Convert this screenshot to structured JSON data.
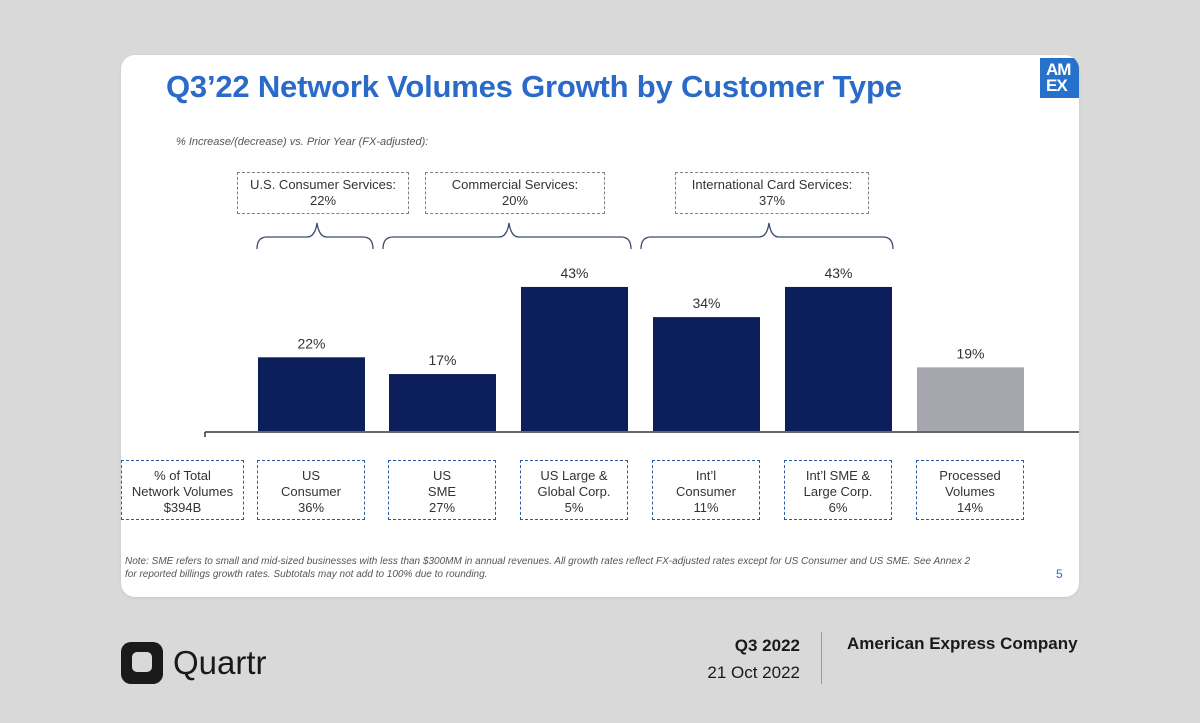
{
  "slide": {
    "title": "Q3’22 Network Volumes Growth by Customer Type",
    "subtitle": "% Increase/(decrease) vs. Prior Year (FX-adjusted):",
    "logo_line1": "AM",
    "logo_line2": "EX",
    "note_line1": "Note: SME refers to small and mid-sized businesses with less than $300MM in annual revenues. All growth rates reflect FX-adjusted rates except for US Consumer and US SME. See Annex 2",
    "note_line2": "for reported billings growth rates. Subtotals may not add to 100% due to rounding.",
    "page_number": "5",
    "groups": [
      {
        "name": "U.S. Consumer Services:",
        "value": "22%"
      },
      {
        "name": "Commercial Services:",
        "value": "20%"
      },
      {
        "name": "International Card Services:",
        "value": "37%"
      }
    ],
    "share_header": {
      "line1": "% of Total",
      "line2": "Network Volumes",
      "line3": "$394B"
    },
    "share_boxes": [
      {
        "line1": "US",
        "line2": "Consumer",
        "share": "36%"
      },
      {
        "line1": "US",
        "line2": "SME",
        "share": "27%"
      },
      {
        "line1": "US Large &",
        "line2": "Global Corp.",
        "share": "5%"
      },
      {
        "line1": "Int’l",
        "line2": "Consumer",
        "share": "11%"
      },
      {
        "line1": "Int’l SME &",
        "line2": "Large Corp.",
        "share": "6%"
      },
      {
        "line1": "Processed",
        "line2": "Volumes",
        "share": "14%"
      }
    ]
  },
  "chart_data": {
    "type": "bar",
    "title": "Q3’22 Network Volumes Growth by Customer Type",
    "ylabel": "% Increase/(decrease) vs. Prior Year (FX-adjusted)",
    "categories": [
      "US Consumer",
      "US SME",
      "US Large & Global Corp.",
      "Int’l Consumer",
      "Int’l SME & Large Corp.",
      "Processed Volumes"
    ],
    "values": [
      22,
      17,
      43,
      34,
      43,
      19
    ],
    "labels": [
      "22%",
      "17%",
      "43%",
      "34%",
      "43%",
      "19%"
    ],
    "ylim": [
      0,
      50
    ],
    "colors": [
      "#0c1f5c",
      "#0c1f5c",
      "#0c1f5c",
      "#0c1f5c",
      "#0c1f5c",
      "#a5a6ae"
    ]
  },
  "footer": {
    "brand": "Quartr",
    "quarter": "Q3 2022",
    "date": "21 Oct 2022",
    "company": "American Express Company"
  }
}
